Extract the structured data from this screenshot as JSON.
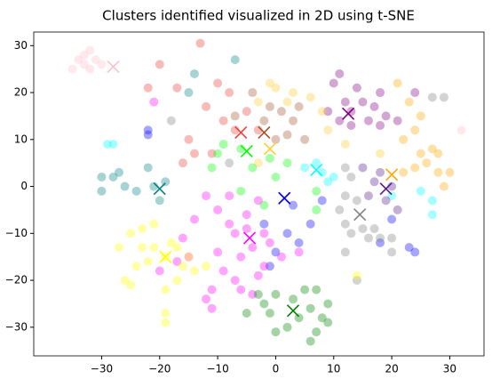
{
  "chart_data": {
    "type": "scatter",
    "title": "Clusters identified visualized in 2D using t-SNE",
    "xlim": [
      -41.7,
      35.9
    ],
    "ylim": [
      -36.1,
      32.9
    ],
    "xticks": [
      {
        "value": -30,
        "label": "−30"
      },
      {
        "value": -20,
        "label": "−20"
      },
      {
        "value": -10,
        "label": "−10"
      },
      0,
      10,
      20,
      30
    ],
    "yticks": [
      {
        "value": -30,
        "label": "−30"
      },
      {
        "value": -20,
        "label": "−20"
      },
      {
        "value": -10,
        "label": "−10"
      },
      0,
      10,
      20,
      30
    ],
    "series": [
      {
        "color": "#ffc0cb",
        "x": [
          -35,
          -34,
          -33,
          -32,
          -31,
          -30,
          -33,
          -32,
          32
        ],
        "y": [
          25,
          27,
          28,
          29,
          27,
          26,
          26,
          25,
          12
        ],
        "centroid": [
          -28,
          25.5
        ]
      },
      {
        "color": "#e8403a",
        "x": [
          -13,
          -20,
          -22,
          -17,
          -10,
          -8,
          -12,
          -9,
          -5,
          -7,
          -3,
          -15,
          -11,
          -16,
          -14
        ],
        "y": [
          30.5,
          26,
          21,
          21,
          22,
          20,
          17,
          14,
          16,
          12,
          12,
          10,
          7,
          5,
          7
        ],
        "centroid": [
          -6,
          11.5
        ]
      },
      {
        "color": "#a0522d",
        "x": [
          -1,
          1,
          3,
          2,
          0,
          4,
          -4,
          -7,
          5,
          -2
        ],
        "y": [
          17,
          16,
          14,
          11,
          10,
          17,
          20,
          15,
          10,
          14
        ],
        "centroid": [
          -2,
          11.5
        ]
      },
      {
        "color": "#800080",
        "x": [
          10,
          11,
          12,
          14,
          15,
          13,
          17,
          18,
          19,
          21,
          16,
          9,
          11,
          13,
          18,
          24
        ],
        "y": [
          22,
          24,
          18,
          21,
          18,
          16,
          17,
          20,
          15,
          14,
          14,
          16,
          14,
          13,
          13,
          20
        ],
        "centroid": [
          12.5,
          15.5
        ]
      },
      {
        "color": "#ffa500",
        "x": [
          21,
          23,
          25,
          24,
          27,
          28,
          26,
          24,
          22,
          28,
          30,
          29,
          25,
          22
        ],
        "y": [
          22,
          18,
          15,
          12,
          8,
          7,
          5,
          4,
          3,
          3,
          3,
          0,
          7,
          10
        ],
        "centroid": [
          20,
          2.5
        ]
      },
      {
        "color": "#ffcc33",
        "x": [
          -1,
          0,
          3,
          -3,
          6,
          8,
          2,
          -3,
          9,
          12,
          18
        ],
        "y": [
          22,
          21,
          20,
          18,
          19,
          16,
          18,
          5,
          12,
          9,
          7
        ],
        "centroid": [
          -1,
          8
        ]
      },
      {
        "color": "#00ff00",
        "x": [
          -11,
          -9,
          -6,
          -1,
          2,
          -4,
          -2,
          7,
          7,
          -6,
          0,
          -10
        ],
        "y": [
          4,
          9,
          8,
          6,
          5,
          4,
          -4,
          -1,
          -5,
          -1,
          2,
          7
        ],
        "centroid": [
          -5,
          7.5
        ]
      },
      {
        "color": "#00ffff",
        "x": [
          -29,
          -28,
          5,
          8,
          10,
          9,
          25,
          27,
          27,
          20,
          7
        ],
        "y": [
          9,
          9,
          4,
          3,
          2,
          1,
          -1,
          -3,
          -6,
          -2,
          5
        ],
        "centroid": [
          7,
          3.5
        ]
      },
      {
        "color": "#008080",
        "x": [
          -30,
          -28,
          -27,
          -24,
          -22,
          -21,
          -19,
          -20,
          -26,
          -14,
          -15,
          -7,
          -30
        ],
        "y": [
          2,
          2,
          3,
          -1,
          4,
          0,
          1,
          -3,
          0,
          24,
          20,
          27,
          -1
        ],
        "centroid": [
          -20,
          -0.5
        ]
      },
      {
        "color": "#0000ff",
        "x": [
          -22,
          -22,
          -2,
          3,
          2,
          4,
          0,
          -1,
          18,
          23,
          24,
          20,
          6,
          8
        ],
        "y": [
          12,
          11,
          -8,
          -4,
          -10,
          -12,
          -14,
          -17,
          -12,
          -13,
          -14,
          -7,
          -8,
          -3
        ],
        "centroid": [
          1.5,
          -2.5
        ]
      },
      {
        "color": "#551a8b",
        "x": [
          15,
          17,
          18,
          20,
          19,
          21,
          16
        ],
        "y": [
          4,
          1,
          3,
          0,
          -3,
          -5,
          -2
        ],
        "centroid": [
          19,
          -0.5
        ]
      },
      {
        "color": "#808080",
        "x": [
          -18,
          -8,
          12,
          13,
          12,
          11,
          14,
          15,
          12,
          13,
          16,
          17,
          18,
          20,
          12,
          14,
          27,
          29,
          20
        ],
        "y": [
          14,
          5,
          4,
          2,
          -2,
          -5,
          -3,
          -9,
          -8,
          -10,
          -11,
          -9,
          -11,
          -11,
          -14,
          -20,
          19,
          19,
          -14
        ],
        "centroid": [
          14.5,
          -6
        ]
      },
      {
        "color": "#ff00ff",
        "x": [
          -12,
          -10,
          -8,
          -7,
          -4,
          -2,
          -6,
          -9,
          -11,
          -12,
          -7,
          -3,
          -1,
          1,
          -2,
          4,
          -5,
          -3,
          -8,
          -11,
          -10,
          -14,
          -16,
          -4,
          -21,
          -6,
          -5,
          -15,
          -17,
          -20
        ],
        "y": [
          -2,
          -5,
          -8,
          -10,
          -13,
          -10,
          -15,
          -18,
          -22,
          -24,
          -20,
          -19,
          -12,
          -15,
          -17,
          -14,
          -6,
          -3,
          -2,
          -26,
          -14,
          -7,
          -11,
          -23,
          18,
          -22,
          -9,
          -15,
          -16,
          -18
        ],
        "centroid": [
          -4.5,
          -11
        ]
      },
      {
        "color": "#ffff00",
        "x": [
          -27,
          -25,
          -23,
          -21,
          -21,
          -19,
          -17,
          -15,
          -22,
          -24,
          -26,
          -25,
          -19,
          -17,
          -16,
          -14,
          -18,
          -23,
          -12,
          -19,
          -19,
          14
        ],
        "y": [
          -13,
          -10,
          -9,
          -8,
          -13,
          -15,
          -13,
          -15,
          -16,
          -17,
          -20,
          -21,
          -22,
          -20,
          -17,
          -18,
          -12,
          -13,
          -17,
          -27,
          -29,
          -19
        ],
        "centroid": [
          -19,
          -15
        ]
      },
      {
        "color": "#008000",
        "x": [
          -3,
          -2,
          0,
          -1,
          0,
          2,
          3,
          5,
          6,
          7,
          4,
          8,
          9,
          6,
          7,
          -5,
          9
        ],
        "y": [
          -23,
          -25,
          -23,
          -27,
          -31,
          -30,
          -24,
          -22,
          -26,
          -22,
          -28,
          -28,
          -29,
          -33,
          -31,
          -27,
          -25
        ],
        "centroid": [
          3,
          -26.5
        ]
      }
    ]
  }
}
